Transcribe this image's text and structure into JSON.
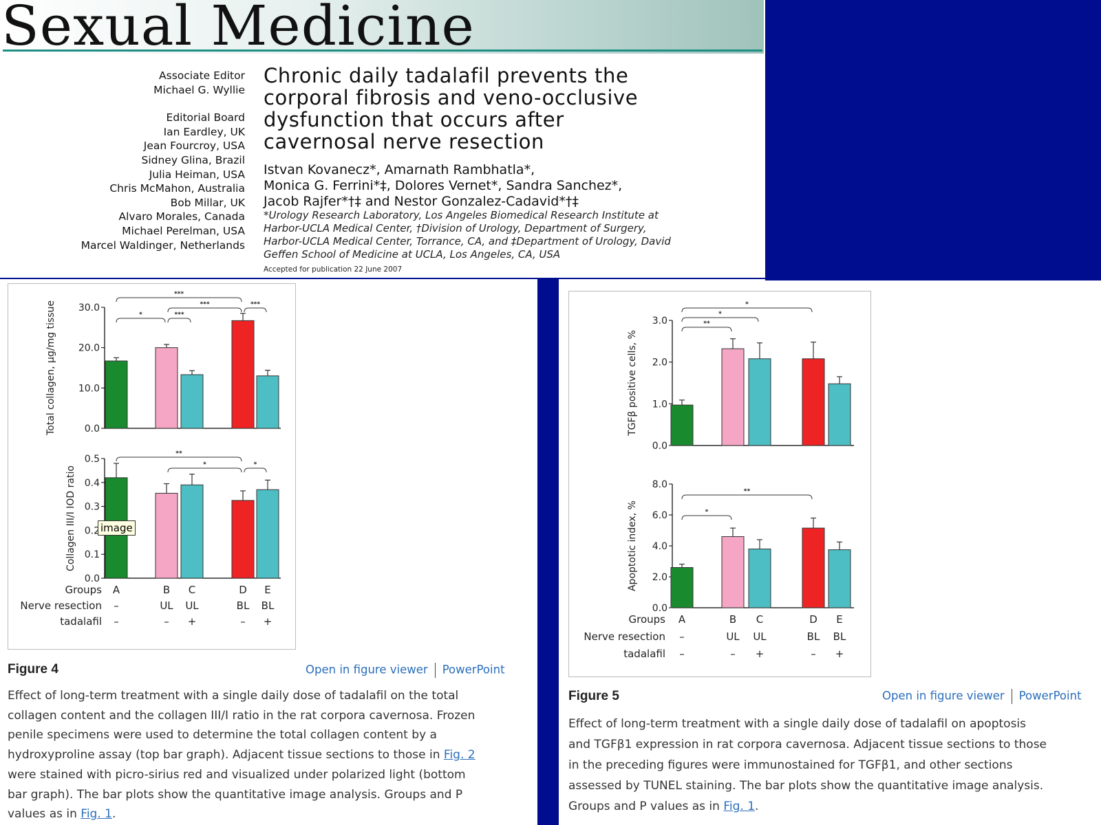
{
  "header": {
    "journal_title": "Sexual Medicine",
    "editors": [
      "Associate Editor",
      "Michael G. Wyllie",
      "",
      "Editorial Board",
      "Ian Eardley, UK",
      "Jean Fourcroy, USA",
      "Sidney Glina, Brazil",
      "Julia Heiman, USA",
      "Chris McMahon, Australia",
      "Bob Millar, UK",
      "Alvaro Morales, Canada",
      "Michael Perelman, USA",
      "Marcel Waldinger, Netherlands"
    ],
    "paper_title": [
      "Chronic daily tadalafil prevents the",
      "corporal fibrosis and veno-occlusive",
      "dysfunction that occurs after",
      "cavernosal nerve resection"
    ],
    "authors": [
      "Istvan Kovanecz*, Amarnath Rambhatla*,",
      "Monica G. Ferrini*‡, Dolores Vernet*, Sandra Sanchez*,",
      "Jacob Rajfer*†‡ and Nestor Gonzalez-Cadavid*†‡"
    ],
    "affiliations": [
      "*Urology Research Laboratory, Los Angeles Biomedical Research Institute at",
      "Harbor-UCLA Medical Center, †Division of Urology, Department of Surgery,",
      "Harbor-UCLA Medical Center, Torrance, CA, and ‡Department of Urology, David",
      "Geffen School of Medicine at UCLA, Los Angeles, CA, USA"
    ],
    "accepted": "Accepted for publication 22 June 2007"
  },
  "figure4": {
    "label": "Figure 4",
    "open_viewer": "Open in figure viewer",
    "powerpoint": "PowerPoint",
    "caption_lines": [
      "Effect of long-term treatment with a single daily dose of tadalafil on the total",
      "collagen content and the collagen III/I ratio in the rat corpora cavernosa. Frozen",
      "penile specimens were used to determine the total collagen content by a",
      "hydroxyproline assay (top bar graph). Adjacent tissue sections to those in "
    ],
    "caption_link1": "Fig.  2",
    "caption_lines2": [
      "were stained with picro-sirius red and visualized under polarized light (bottom",
      "bar graph). The bar plots show the quantitative image analysis. Groups and P",
      "values as in "
    ],
    "caption_link2": "Fig.  1",
    "caption_end": ".",
    "tooltip": "image"
  },
  "figure5": {
    "label": "Figure 5",
    "open_viewer": "Open in figure viewer",
    "powerpoint": "PowerPoint",
    "caption_lines": [
      "Effect of long-term treatment with a single daily dose of tadalafil on apoptosis",
      "and TGFβ1 expression in rat corpora cavernosa. Adjacent tissue sections to those",
      "in the preceding figures were immunostained for TGFβ1, and other sections",
      "assessed by TUNEL staining. The bar plots show the quantitative image analysis.",
      "Groups and P values as in "
    ],
    "caption_link": "Fig.  1",
    "caption_end": "."
  },
  "colors": {
    "A": "#1a8a2e",
    "B": "#f4a6c4",
    "C": "#4dbfc4",
    "D": "#ee2424",
    "E": "#4dbfc4",
    "navy": "#000d8e"
  },
  "chart_data": [
    {
      "id": "fig4_top",
      "type": "bar",
      "categories": [
        "A",
        "B",
        "C",
        "D",
        "E"
      ],
      "values": [
        16.7,
        20.0,
        13.3,
        26.7,
        13.0
      ],
      "errors": [
        0.8,
        0.8,
        1.0,
        1.8,
        1.4
      ],
      "ylabel": "Total collagen, µg/mg tissue",
      "ylim": [
        0,
        30
      ],
      "yticks": [
        "0.0",
        "10.0",
        "20.0",
        "30.0"
      ],
      "brackets": [
        {
          "from": "A",
          "to": "D",
          "label": "***",
          "level": 0
        },
        {
          "from": "B",
          "to": "D",
          "label": "***",
          "level": 1
        },
        {
          "from": "D",
          "to": "E",
          "label": "***",
          "level": 1
        },
        {
          "from": "A",
          "to": "B",
          "label": "*",
          "level": 2
        },
        {
          "from": "B",
          "to": "C",
          "label": "***",
          "level": 2
        }
      ]
    },
    {
      "id": "fig4_bottom",
      "type": "bar",
      "categories": [
        "A",
        "B",
        "C",
        "D",
        "E"
      ],
      "values": [
        0.42,
        0.355,
        0.39,
        0.325,
        0.37
      ],
      "errors": [
        0.06,
        0.04,
        0.045,
        0.04,
        0.04
      ],
      "ylabel": "Collagen III/I IOD ratio",
      "ylim": [
        0,
        0.5
      ],
      "yticks": [
        "0.0",
        "0.1",
        "0.2",
        "0.3",
        "0.4",
        "0.5"
      ],
      "brackets": [
        {
          "from": "A",
          "to": "D",
          "label": "**",
          "level": 0
        },
        {
          "from": "B",
          "to": "D",
          "label": "*",
          "level": 1
        },
        {
          "from": "D",
          "to": "E",
          "label": "*",
          "level": 1
        }
      ],
      "groups_row": {
        "label": "Groups",
        "values": [
          "A",
          "B",
          "C",
          "D",
          "E"
        ]
      },
      "nerve_row": {
        "label": "Nerve resection",
        "values": [
          "–",
          "UL",
          "UL",
          "BL",
          "BL"
        ]
      },
      "tadalafil_row": {
        "label": "tadalafil",
        "values": [
          "–",
          "–",
          "+",
          "–",
          "+"
        ]
      }
    },
    {
      "id": "fig5_top",
      "type": "bar",
      "categories": [
        "A",
        "B",
        "C",
        "D",
        "E"
      ],
      "values": [
        0.97,
        2.32,
        2.08,
        2.08,
        1.48
      ],
      "errors": [
        0.12,
        0.24,
        0.38,
        0.4,
        0.17
      ],
      "ylabel": "TGFβ positive cells, %",
      "ylim": [
        0,
        3
      ],
      "yticks": [
        "0.0",
        "1.0",
        "2.0",
        "3.0"
      ],
      "brackets": [
        {
          "from": "A",
          "to": "D",
          "label": "*",
          "level": 0
        },
        {
          "from": "A",
          "to": "C",
          "label": "*",
          "level": 1
        },
        {
          "from": "A",
          "to": "B",
          "label": "**",
          "level": 2
        }
      ]
    },
    {
      "id": "fig5_bottom",
      "type": "bar",
      "categories": [
        "A",
        "B",
        "C",
        "D",
        "E"
      ],
      "values": [
        2.6,
        4.6,
        3.8,
        5.15,
        3.75
      ],
      "errors": [
        0.22,
        0.55,
        0.6,
        0.65,
        0.5
      ],
      "ylabel": "Apoptotic index, %",
      "ylim": [
        0,
        8
      ],
      "yticks": [
        "0.0",
        "2.0",
        "4.0",
        "6.0",
        "8.0"
      ],
      "brackets": [
        {
          "from": "A",
          "to": "D",
          "label": "**",
          "level": 0
        },
        {
          "from": "A",
          "to": "B",
          "label": "*",
          "level": 1
        }
      ],
      "groups_row": {
        "label": "Groups",
        "values": [
          "A",
          "B",
          "C",
          "D",
          "E"
        ]
      },
      "nerve_row": {
        "label": "Nerve resection",
        "values": [
          "–",
          "UL",
          "UL",
          "BL",
          "BL"
        ]
      },
      "tadalafil_row": {
        "label": "tadalafil",
        "values": [
          "–",
          "–",
          "+",
          "–",
          "+"
        ]
      }
    }
  ]
}
